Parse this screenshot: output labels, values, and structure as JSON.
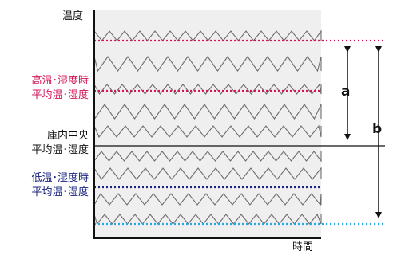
{
  "labels": {
    "y_axis": "温度",
    "x_axis": "時間",
    "high": [
      "高温･湿度時",
      "平均温･湿度"
    ],
    "center": [
      "庫内中央",
      "平均温･湿度"
    ],
    "low": [
      "低温･湿度時",
      "平均温･湿度"
    ],
    "a": "a",
    "b": "b"
  },
  "colors": {
    "plot_bg": "#efefef",
    "zigzag": "#6e6e6e",
    "high_line": "#d4145a",
    "low_line": "#1a237e",
    "bottom_line": "#29a8d6",
    "axis": "#111111"
  }
}
